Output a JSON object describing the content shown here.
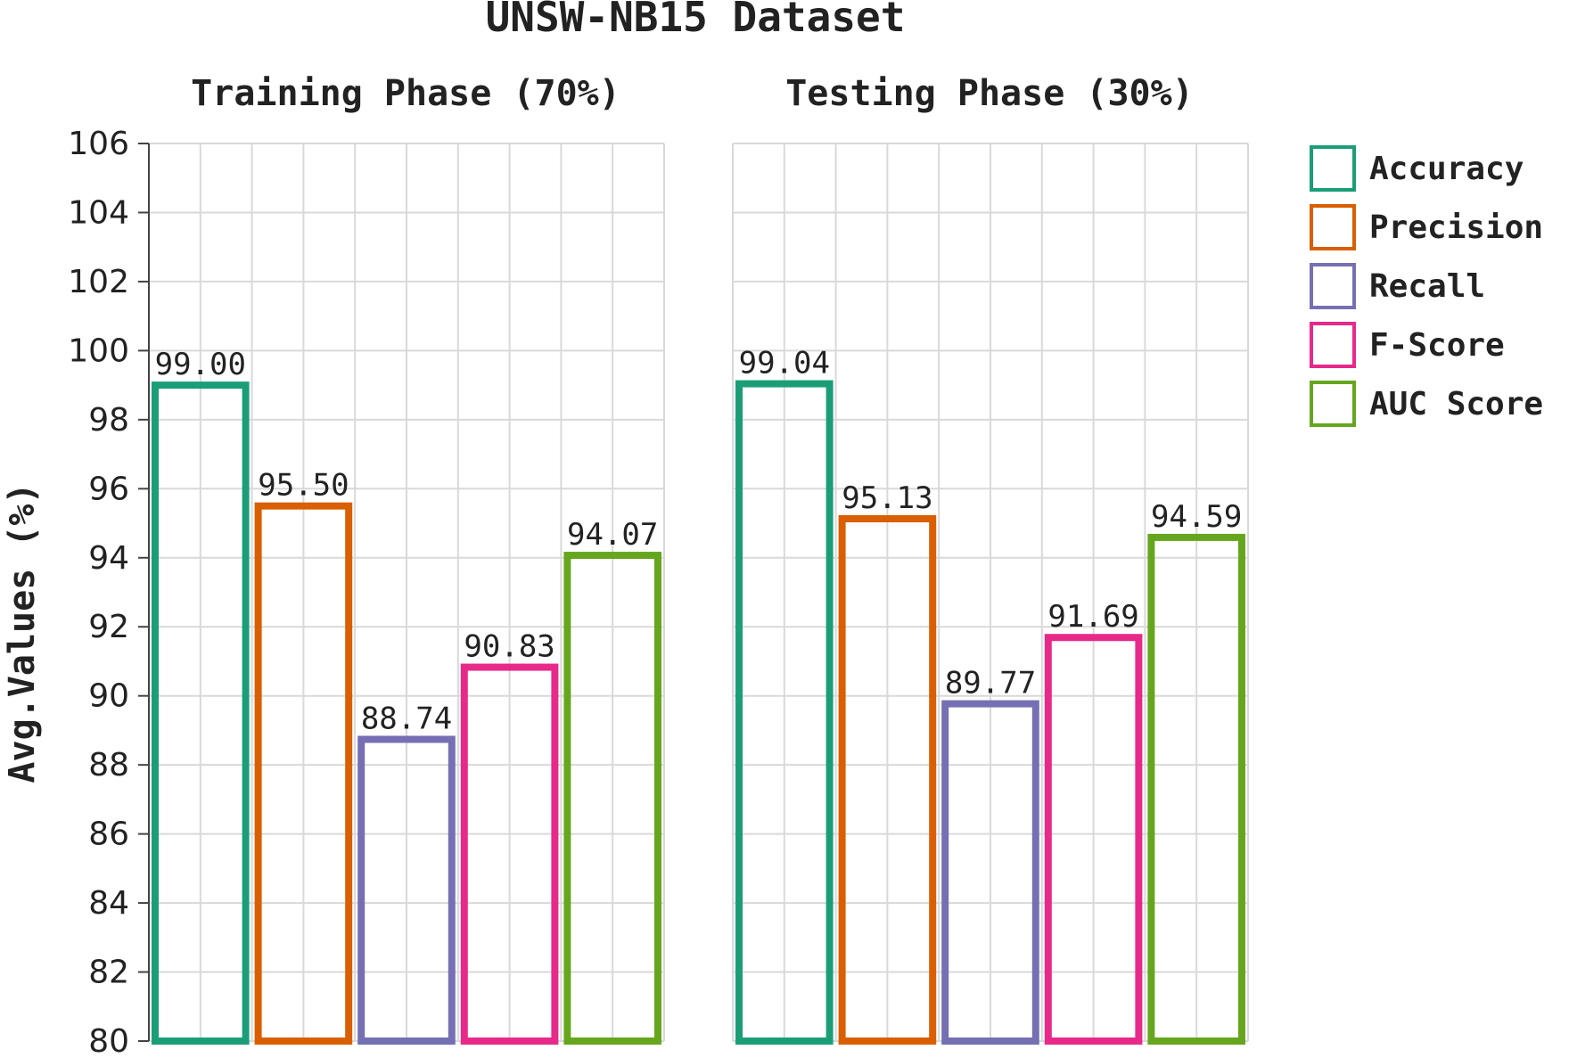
{
  "chart_data": {
    "type": "bar",
    "title": "UNSW-NB15 Dataset",
    "ylabel": "Avg.Values (%)",
    "ylim": [
      80,
      106
    ],
    "yticks": [
      80,
      82,
      84,
      86,
      88,
      90,
      92,
      94,
      96,
      98,
      100,
      102,
      104,
      106
    ],
    "grid": true,
    "legend_position": "right",
    "series_names": [
      "Accuracy",
      "Precision",
      "Recall",
      "F-Score",
      "AUC Score"
    ],
    "colors": [
      "#1b9e77",
      "#d95f02",
      "#7570b3",
      "#e7298a",
      "#66a61e"
    ],
    "panels": [
      {
        "title": "Training Phase (70%)",
        "values": [
          99.0,
          95.5,
          88.74,
          90.83,
          94.07
        ],
        "labels": [
          "99.00",
          "95.50",
          "88.74",
          "90.83",
          "94.07"
        ]
      },
      {
        "title": "Testing Phase (30%)",
        "values": [
          99.04,
          95.13,
          89.77,
          91.69,
          94.59
        ],
        "labels": [
          "99.04",
          "95.13",
          "89.77",
          "91.69",
          "94.59"
        ]
      }
    ]
  }
}
